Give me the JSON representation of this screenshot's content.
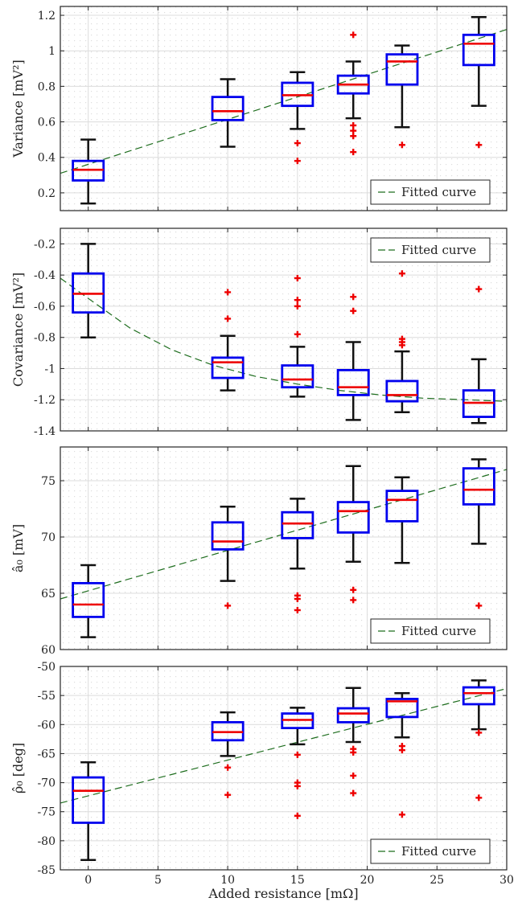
{
  "xlabel": "Added resistance [mΩ]",
  "x_tick_labels": [
    "0",
    "5",
    "10",
    "15",
    "20",
    "25",
    "30"
  ],
  "legend_label": "Fitted curve",
  "colors": {
    "box_edge": "#0000ee",
    "median": "#ee0000",
    "whisker": "#111111",
    "outlier": "#ee0000",
    "fit": "#1f6e1f",
    "grid": "#dcdcdc",
    "dots": "#dddddd"
  },
  "chart_data": [
    {
      "type": "box",
      "ylabel": "Variance [mV²]",
      "xlim": [
        -2,
        30
      ],
      "ylim": [
        0.1,
        1.25
      ],
      "yticks": [
        0.2,
        0.4,
        0.6,
        0.8,
        1,
        1.2
      ],
      "ytick_labels": [
        "0.2",
        "0.4",
        "0.6",
        "0.8",
        "1",
        "1.2"
      ],
      "legend_position": "bottom-right",
      "boxes": [
        {
          "x": 0,
          "whisker_low": 0.14,
          "q1": 0.27,
          "median": 0.33,
          "q3": 0.38,
          "whisker_high": 0.5,
          "outliers": []
        },
        {
          "x": 10,
          "whisker_low": 0.46,
          "q1": 0.61,
          "median": 0.66,
          "q3": 0.74,
          "whisker_high": 0.84,
          "outliers": []
        },
        {
          "x": 15,
          "whisker_low": 0.56,
          "q1": 0.69,
          "median": 0.75,
          "q3": 0.82,
          "whisker_high": 0.88,
          "outliers": [
            0.48,
            0.38
          ]
        },
        {
          "x": 19,
          "whisker_low": 0.62,
          "q1": 0.76,
          "median": 0.81,
          "q3": 0.86,
          "whisker_high": 0.94,
          "outliers": [
            1.09,
            0.58,
            0.55,
            0.52,
            0.43
          ]
        },
        {
          "x": 22.5,
          "whisker_low": 0.57,
          "q1": 0.81,
          "median": 0.94,
          "q3": 0.98,
          "whisker_high": 1.03,
          "outliers": [
            0.47
          ]
        },
        {
          "x": 28,
          "whisker_low": 0.69,
          "q1": 0.92,
          "median": 1.04,
          "q3": 1.09,
          "whisker_high": 1.19,
          "outliers": [
            0.47
          ]
        }
      ],
      "fit": {
        "x": [
          -2,
          30
        ],
        "y": [
          0.31,
          1.12
        ]
      }
    },
    {
      "type": "box",
      "ylabel": "Covariance [mV²]",
      "xlim": [
        -2,
        30
      ],
      "ylim": [
        -1.4,
        -0.1
      ],
      "yticks": [
        -1.4,
        -1.2,
        -1,
        -0.8,
        -0.6,
        -0.4,
        -0.2
      ],
      "ytick_labels": [
        "-1.4",
        "-1.2",
        "-1",
        "-0.8",
        "-0.6",
        "-0.4",
        "-0.2"
      ],
      "legend_position": "top-right",
      "boxes": [
        {
          "x": 0,
          "whisker_low": -0.8,
          "q1": -0.64,
          "median": -0.52,
          "q3": -0.39,
          "whisker_high": -0.2,
          "outliers": []
        },
        {
          "x": 10,
          "whisker_low": -1.14,
          "q1": -1.06,
          "median": -0.96,
          "q3": -0.93,
          "whisker_high": -0.79,
          "outliers": [
            -0.51,
            -0.68
          ]
        },
        {
          "x": 15,
          "whisker_low": -1.18,
          "q1": -1.12,
          "median": -1.07,
          "q3": -0.98,
          "whisker_high": -0.86,
          "outliers": [
            -0.42,
            -0.56,
            -0.6,
            -0.78
          ]
        },
        {
          "x": 19,
          "whisker_low": -1.33,
          "q1": -1.17,
          "median": -1.12,
          "q3": -1.01,
          "whisker_high": -0.83,
          "outliers": [
            -0.54,
            -0.63
          ]
        },
        {
          "x": 22.5,
          "whisker_low": -1.28,
          "q1": -1.21,
          "median": -1.17,
          "q3": -1.08,
          "whisker_high": -0.89,
          "outliers": [
            -0.39,
            -0.81,
            -0.83,
            -0.85
          ]
        },
        {
          "x": 28,
          "whisker_low": -1.35,
          "q1": -1.31,
          "median": -1.22,
          "q3": -1.14,
          "whisker_high": -0.94,
          "outliers": [
            -0.49
          ]
        }
      ],
      "fit": {
        "x": [
          -2,
          0,
          3,
          6,
          9,
          12,
          15,
          18,
          21,
          24,
          27,
          30
        ],
        "y": [
          -0.42,
          -0.55,
          -0.74,
          -0.88,
          -0.98,
          -1.05,
          -1.1,
          -1.14,
          -1.17,
          -1.19,
          -1.2,
          -1.21
        ]
      }
    },
    {
      "type": "box",
      "ylabel": "â₀ [mV]",
      "xlim": [
        -2,
        30
      ],
      "ylim": [
        60,
        78
      ],
      "yticks": [
        60,
        65,
        70,
        75
      ],
      "ytick_labels": [
        "60",
        "65",
        "70",
        "75"
      ],
      "legend_position": "bottom-right",
      "boxes": [
        {
          "x": 0,
          "whisker_low": 61.1,
          "q1": 62.9,
          "median": 64.0,
          "q3": 65.9,
          "whisker_high": 67.5,
          "outliers": []
        },
        {
          "x": 10,
          "whisker_low": 66.1,
          "q1": 68.9,
          "median": 69.6,
          "q3": 71.3,
          "whisker_high": 72.7,
          "outliers": [
            63.9
          ]
        },
        {
          "x": 15,
          "whisker_low": 67.2,
          "q1": 69.9,
          "median": 71.2,
          "q3": 72.2,
          "whisker_high": 73.4,
          "outliers": [
            64.8,
            64.5,
            63.5
          ]
        },
        {
          "x": 19,
          "whisker_low": 67.8,
          "q1": 70.4,
          "median": 72.3,
          "q3": 73.1,
          "whisker_high": 76.3,
          "outliers": [
            65.3,
            64.4
          ]
        },
        {
          "x": 22.5,
          "whisker_low": 67.7,
          "q1": 71.4,
          "median": 73.3,
          "q3": 74.1,
          "whisker_high": 75.3,
          "outliers": []
        },
        {
          "x": 28,
          "whisker_low": 69.4,
          "q1": 72.9,
          "median": 74.2,
          "q3": 76.1,
          "whisker_high": 76.9,
          "outliers": [
            63.9
          ]
        }
      ],
      "fit": {
        "x": [
          -2,
          30
        ],
        "y": [
          64.5,
          76.0
        ]
      }
    },
    {
      "type": "box",
      "ylabel": "ρ̂₀ [deg]",
      "xlim": [
        -2,
        30
      ],
      "ylim": [
        -85,
        -50
      ],
      "yticks": [
        -85,
        -80,
        -75,
        -70,
        -65,
        -60,
        -55,
        -50
      ],
      "ytick_labels": [
        "-85",
        "-80",
        "-75",
        "-70",
        "-65",
        "-60",
        "-55",
        "-50"
      ],
      "legend_position": "bottom-right",
      "boxes": [
        {
          "x": 0,
          "whisker_low": -83.3,
          "q1": -76.9,
          "median": -71.4,
          "q3": -69.1,
          "whisker_high": -66.5,
          "outliers": []
        },
        {
          "x": 10,
          "whisker_low": -65.4,
          "q1": -62.7,
          "median": -61.3,
          "q3": -59.6,
          "whisker_high": -57.9,
          "outliers": [
            -67.4,
            -72.1
          ]
        },
        {
          "x": 15,
          "whisker_low": -63.4,
          "q1": -60.6,
          "median": -59.2,
          "q3": -58.1,
          "whisker_high": -57.1,
          "outliers": [
            -65.2,
            -70.0,
            -70.6,
            -75.7
          ]
        },
        {
          "x": 19,
          "whisker_low": -63.0,
          "q1": -59.6,
          "median": -58.1,
          "q3": -57.2,
          "whisker_high": -53.7,
          "outliers": [
            -64.2,
            -64.8,
            -68.8,
            -71.8
          ]
        },
        {
          "x": 22.5,
          "whisker_low": -62.2,
          "q1": -58.7,
          "median": -56.0,
          "q3": -55.6,
          "whisker_high": -54.6,
          "outliers": [
            -63.7,
            -64.4,
            -75.5
          ]
        },
        {
          "x": 28,
          "whisker_low": -60.8,
          "q1": -56.5,
          "median": -54.6,
          "q3": -53.6,
          "whisker_high": -52.4,
          "outliers": [
            -61.4,
            -72.6
          ]
        }
      ],
      "fit": {
        "x": [
          -2,
          30
        ],
        "y": [
          -73.5,
          -53.8
        ]
      }
    }
  ]
}
